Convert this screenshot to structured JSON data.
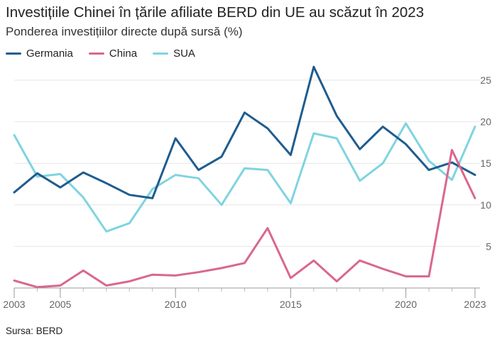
{
  "title": "Investițiile Chinei în țările afiliate BERD din UE au scăzut în 2023",
  "subtitle": "Ponderea investițiilor directe după sursă (%)",
  "source": "Sursa: BERD",
  "chart_data": {
    "type": "line",
    "x": [
      2003,
      2004,
      2005,
      2006,
      2007,
      2008,
      2009,
      2010,
      2011,
      2012,
      2013,
      2014,
      2015,
      2016,
      2017,
      2018,
      2019,
      2020,
      2021,
      2022,
      2023
    ],
    "x_ticks": [
      2003,
      2005,
      2010,
      2015,
      2020,
      2023
    ],
    "y_ticks": [
      5,
      10,
      15,
      20,
      25
    ],
    "ylim": [
      0,
      27
    ],
    "grid": true,
    "legend_position": "top-left",
    "series": [
      {
        "name": "Germania",
        "color": "#1f5c8f",
        "values": [
          11.5,
          13.8,
          12.1,
          13.9,
          12.6,
          11.2,
          10.8,
          18.0,
          14.2,
          15.8,
          21.1,
          19.2,
          16.0,
          26.6,
          20.7,
          16.7,
          19.4,
          17.3,
          14.2,
          15.1,
          13.6
        ]
      },
      {
        "name": "China",
        "color": "#d9678f",
        "values": [
          0.9,
          0.1,
          0.3,
          2.1,
          0.3,
          0.8,
          1.6,
          1.5,
          1.9,
          2.4,
          3.0,
          7.2,
          1.2,
          3.3,
          0.8,
          3.3,
          2.3,
          1.4,
          1.4,
          16.6,
          10.8
        ]
      },
      {
        "name": "SUA",
        "color": "#7fd4e0",
        "values": [
          18.4,
          13.4,
          13.7,
          10.9,
          6.8,
          7.8,
          11.9,
          13.6,
          13.2,
          10.0,
          14.4,
          14.2,
          10.2,
          18.6,
          18.0,
          12.9,
          15.0,
          19.8,
          15.3,
          13.0,
          19.4
        ]
      }
    ]
  }
}
